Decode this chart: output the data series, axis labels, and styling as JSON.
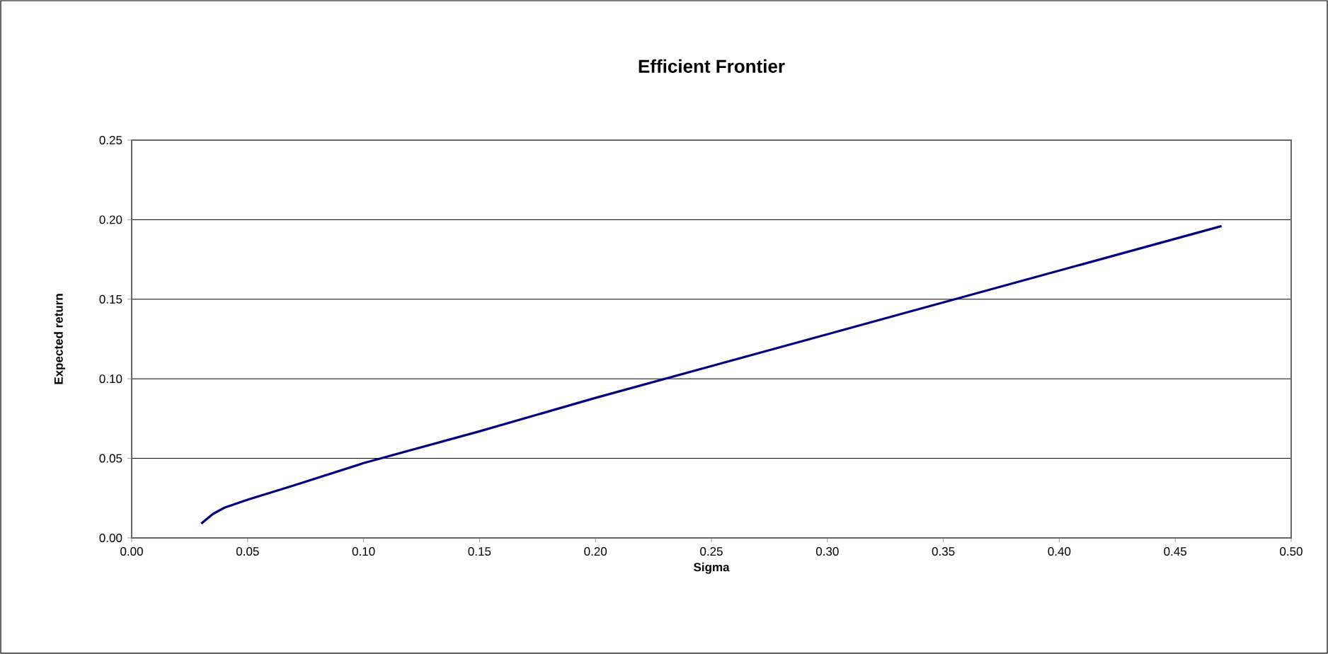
{
  "chart_data": {
    "type": "line",
    "title": "Efficient Frontier",
    "xlabel": "Sigma",
    "ylabel": "Expected return",
    "x": [
      0.03,
      0.035,
      0.04,
      0.05,
      0.07,
      0.1,
      0.15,
      0.2,
      0.25,
      0.3,
      0.35,
      0.4,
      0.47
    ],
    "series": [
      {
        "color": "#000080",
        "values": [
          0.009,
          0.015,
          0.019,
          0.024,
          0.033,
          0.047,
          0.067,
          0.088,
          0.108,
          0.128,
          0.148,
          0.168,
          0.196
        ]
      }
    ],
    "xlim": [
      0,
      0.5
    ],
    "ylim": [
      0,
      0.25
    ],
    "xticks": [
      {
        "value": 0,
        "label": "0.00"
      },
      {
        "value": 0.05,
        "label": "0.05"
      },
      {
        "value": 0.1,
        "label": "0.10"
      },
      {
        "value": 0.15,
        "label": "0.15"
      },
      {
        "value": 0.2,
        "label": "0.20"
      },
      {
        "value": 0.25,
        "label": "0.25"
      },
      {
        "value": 0.3,
        "label": "0.30"
      },
      {
        "value": 0.35,
        "label": "0.35"
      },
      {
        "value": 0.4,
        "label": "0.40"
      },
      {
        "value": 0.45,
        "label": "0.45"
      },
      {
        "value": 0.5,
        "label": "0.50"
      }
    ],
    "yticks": [
      {
        "value": 0,
        "label": "0.00"
      },
      {
        "value": 0.05,
        "label": "0.05"
      },
      {
        "value": 0.1,
        "label": "0.10"
      },
      {
        "value": 0.15,
        "label": "0.15"
      },
      {
        "value": 0.2,
        "label": "0.20"
      },
      {
        "value": 0.25,
        "label": "0.25"
      }
    ],
    "grid": "y",
    "marker": "none",
    "line_style": "solid"
  }
}
